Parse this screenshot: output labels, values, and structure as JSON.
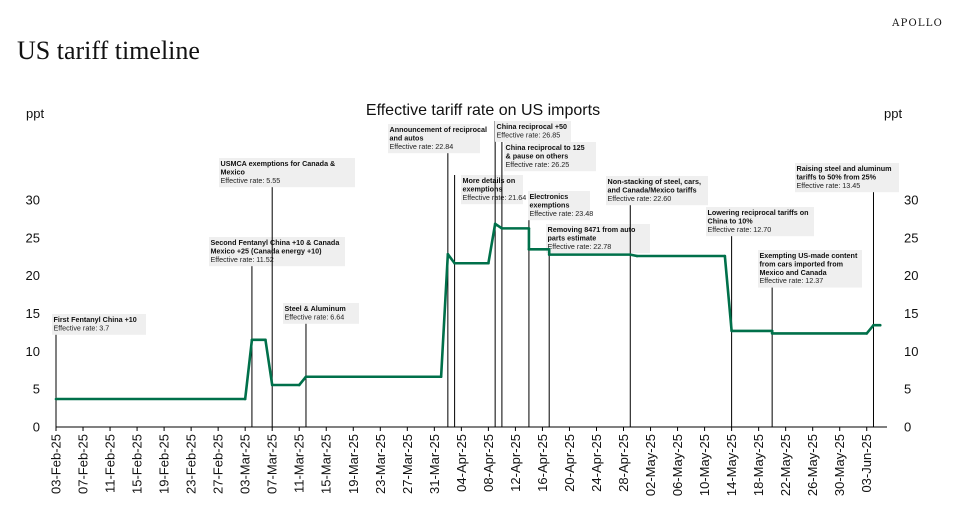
{
  "brand": "APOLLO",
  "page_title": "US tariff timeline",
  "chart_data": {
    "type": "line",
    "title": "Effective tariff rate on US imports",
    "ylabel_left": "ppt",
    "ylabel_right": "ppt",
    "ylim": [
      0,
      30
    ],
    "yticks": [
      0,
      5,
      10,
      15,
      20,
      25,
      30
    ],
    "x_start": "2025-02-03",
    "x_end": "2025-06-06",
    "xticks": [
      "03-Feb-25",
      "07-Feb-25",
      "11-Feb-25",
      "15-Feb-25",
      "19-Feb-25",
      "23-Feb-25",
      "27-Feb-25",
      "03-Mar-25",
      "07-Mar-25",
      "11-Mar-25",
      "15-Mar-25",
      "19-Mar-25",
      "23-Mar-25",
      "27-Mar-25",
      "31-Mar-25",
      "04-Apr-25",
      "08-Apr-25",
      "12-Apr-25",
      "16-Apr-25",
      "20-Apr-25",
      "24-Apr-25",
      "28-Apr-25",
      "02-May-25",
      "06-May-25",
      "10-May-25",
      "14-May-25",
      "18-May-25",
      "22-May-25",
      "26-May-25",
      "30-May-25",
      "03-Jun-25"
    ],
    "series": [
      {
        "name": "Effective tariff rate",
        "color": "#00704a",
        "points": [
          [
            "2025-02-03",
            3.7
          ],
          [
            "2025-03-03",
            3.7
          ],
          [
            "2025-03-04",
            11.52
          ],
          [
            "2025-03-06",
            11.52
          ],
          [
            "2025-03-07",
            5.55
          ],
          [
            "2025-03-11",
            5.55
          ],
          [
            "2025-03-12",
            6.64
          ],
          [
            "2025-04-01",
            6.64
          ],
          [
            "2025-04-02",
            22.84
          ],
          [
            "2025-04-03",
            21.64
          ],
          [
            "2025-04-08",
            21.64
          ],
          [
            "2025-04-09",
            26.85
          ],
          [
            "2025-04-10",
            26.25
          ],
          [
            "2025-04-14",
            26.25
          ],
          [
            "2025-04-14",
            23.48
          ],
          [
            "2025-04-17",
            23.48
          ],
          [
            "2025-04-17",
            22.78
          ],
          [
            "2025-04-29",
            22.78
          ],
          [
            "2025-04-30",
            22.6
          ],
          [
            "2025-05-13",
            22.6
          ],
          [
            "2025-05-14",
            12.7
          ],
          [
            "2025-05-20",
            12.7
          ],
          [
            "2025-05-20",
            12.37
          ],
          [
            "2025-06-03",
            12.37
          ],
          [
            "2025-06-04",
            13.45
          ],
          [
            "2025-06-05",
            13.45
          ]
        ]
      }
    ],
    "annotations": [
      {
        "name": "first-fentanyl",
        "date": "2025-02-03",
        "title": [
          "First Fentanyl China +10"
        ],
        "rate": "Effective rate: 3.7"
      },
      {
        "name": "second-fentanyl",
        "date": "2025-03-04",
        "title": [
          "Second Fentanyl China +10 & Canada",
          "Mexico +25 (Canada energy +10)"
        ],
        "rate": "Effective rate: 11.52"
      },
      {
        "name": "usmca-exemptions",
        "date": "2025-03-07",
        "title": [
          "USMCA exemptions for Canada &",
          "Mexico"
        ],
        "rate": "Effective rate: 5.55"
      },
      {
        "name": "steel-aluminum",
        "date": "2025-03-12",
        "title": [
          "Steel & Aluminum"
        ],
        "rate": "Effective rate: 6.64"
      },
      {
        "name": "reciprocal-autos",
        "date": "2025-04-02",
        "title": [
          "Announcement of reciprocal",
          "and autos"
        ],
        "rate": "Effective rate: 22.84"
      },
      {
        "name": "more-exemptions",
        "date": "2025-04-03",
        "title": [
          "More details on",
          "exemptions"
        ],
        "rate": "Effective rate: 21.64"
      },
      {
        "name": "china-reciprocal-50",
        "date": "2025-04-09",
        "title": [
          "China reciprocal +50"
        ],
        "rate": "Effective rate: 26.85"
      },
      {
        "name": "china-reciprocal-125",
        "date": "2025-04-10",
        "title": [
          "China reciprocal to 125",
          "& pause on others"
        ],
        "rate": "Effective rate: 26.25"
      },
      {
        "name": "electronics-exemptions",
        "date": "2025-04-14",
        "title": [
          "Electronics",
          "exemptions"
        ],
        "rate": "Effective rate: 23.48"
      },
      {
        "name": "removing-8471",
        "date": "2025-04-17",
        "title": [
          "Removing 8471 from auto",
          "parts estimate"
        ],
        "rate": "Effective rate: 22.78"
      },
      {
        "name": "non-stacking",
        "date": "2025-04-29",
        "title": [
          "Non-stacking of steel, cars,",
          "and Canada/Mexico tariffs"
        ],
        "rate": "Effective rate: 22.60"
      },
      {
        "name": "lowering-china",
        "date": "2025-05-14",
        "title": [
          "Lowering reciprocal tariffs on",
          "China to 10%"
        ],
        "rate": "Effective rate: 12.70"
      },
      {
        "name": "us-made-content",
        "date": "2025-05-20",
        "title": [
          "Exempting US-made content",
          "from cars imported from",
          "Mexico and Canada"
        ],
        "rate": "Effective rate: 12.37"
      },
      {
        "name": "steel-aluminum-50",
        "date": "2025-06-04",
        "title": [
          "Raising steel and aluminum",
          "tariffs to 50% from 25%"
        ],
        "rate": "Effective rate: 13.45"
      }
    ]
  }
}
